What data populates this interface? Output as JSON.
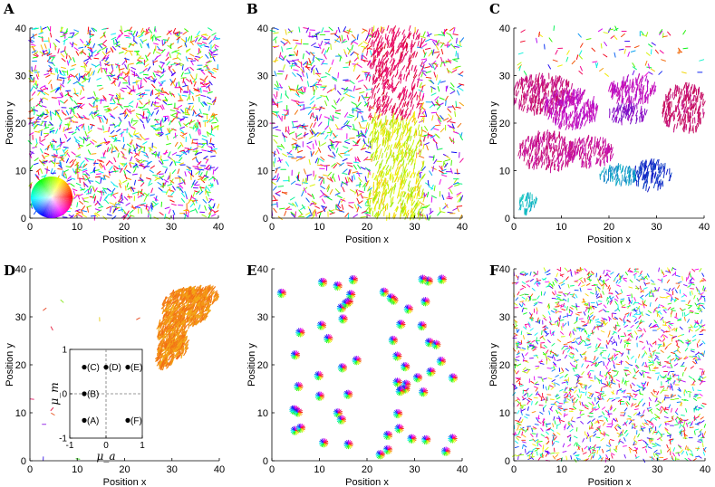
{
  "chart_data": [
    {
      "id": "A",
      "type": "scatter",
      "panel_label": "A",
      "xlabel": "Position x",
      "ylabel": "Position y",
      "xlim": [
        0,
        40
      ],
      "ylim": [
        0,
        40
      ],
      "xticks": [
        "0",
        "10",
        "20",
        "30",
        "40"
      ],
      "yticks": [
        "0",
        "10",
        "20",
        "30",
        "40"
      ],
      "pattern": "disordered",
      "color_wheel": true
    },
    {
      "id": "B",
      "type": "scatter",
      "panel_label": "B",
      "xlabel": "Position x",
      "ylabel": "Position y",
      "xlim": [
        0,
        40
      ],
      "ylim": [
        0,
        40
      ],
      "xticks": [
        "0",
        "10",
        "20",
        "30",
        "40"
      ],
      "yticks": [
        "0",
        "10",
        "20",
        "30",
        "40"
      ],
      "pattern": "band"
    },
    {
      "id": "C",
      "type": "scatter",
      "panel_label": "C",
      "xlabel": "Position x",
      "ylabel": "Position y",
      "xlim": [
        0,
        40
      ],
      "ylim": [
        0,
        40
      ],
      "xticks": [
        "0",
        "10",
        "20",
        "30",
        "40"
      ],
      "yticks": [
        "0",
        "10",
        "20",
        "30",
        "40"
      ],
      "pattern": "patches"
    },
    {
      "id": "D",
      "type": "scatter",
      "panel_label": "D",
      "xlabel": "Position x",
      "ylabel": "Position y",
      "xlim": [
        0,
        40
      ],
      "ylim": [
        0,
        40
      ],
      "xticks": [
        "0",
        "10",
        "20",
        "30",
        "40"
      ],
      "yticks": [
        "0",
        "10",
        "20",
        "30",
        "40"
      ],
      "pattern": "cluster",
      "cluster_color": "#f07a25",
      "inset": {
        "xlabel": "μ_a",
        "ylabel": "μ_m",
        "xlim": [
          -1,
          1
        ],
        "ylim": [
          -1,
          1
        ],
        "xticks": [
          "-1",
          "0",
          "1"
        ],
        "yticks": [
          "-1",
          "0",
          "1"
        ],
        "points": [
          {
            "label": "(C)",
            "x": -0.6,
            "y": 0.6
          },
          {
            "label": "(D)",
            "x": 0,
            "y": 0.6
          },
          {
            "label": "(E)",
            "x": 0.6,
            "y": 0.6
          },
          {
            "label": "(B)",
            "x": -0.6,
            "y": 0
          },
          {
            "label": "(A)",
            "x": -0.6,
            "y": -0.6
          },
          {
            "label": "(F)",
            "x": 0.6,
            "y": -0.6
          }
        ]
      }
    },
    {
      "id": "E",
      "type": "scatter",
      "panel_label": "E",
      "xlabel": "Position x",
      "ylabel": "Position y",
      "xlim": [
        0,
        40
      ],
      "ylim": [
        0,
        40
      ],
      "xticks": [
        "0",
        "10",
        "20",
        "30",
        "40"
      ],
      "yticks": [
        "0",
        "10",
        "20",
        "30",
        "40"
      ],
      "pattern": "asters"
    },
    {
      "id": "F",
      "type": "scatter",
      "panel_label": "F",
      "xlabel": "Position x",
      "ylabel": "Position y",
      "xlim": [
        0,
        40
      ],
      "ylim": [
        0,
        40
      ],
      "xticks": [
        "0",
        "10",
        "20",
        "30",
        "40"
      ],
      "yticks": [
        "0",
        "10",
        "20",
        "30",
        "40"
      ],
      "pattern": "disordered_fine"
    }
  ]
}
